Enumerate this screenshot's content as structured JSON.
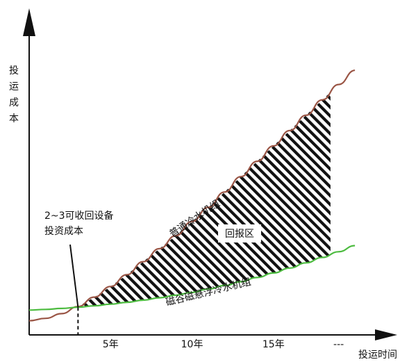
{
  "chart_data": {
    "type": "line",
    "ylabel": "投运成本",
    "xlabel": "投运时间",
    "x_ticks": [
      "5年",
      "10年",
      "15年",
      "---"
    ],
    "x_tick_values": [
      5,
      10,
      15,
      19
    ],
    "xlim": [
      0,
      22
    ],
    "series": [
      {
        "name": "普通冷水机组",
        "color": "#9a5545",
        "x": [
          0,
          1,
          2,
          3,
          4,
          5,
          6,
          7,
          8,
          9,
          10,
          11,
          12,
          13,
          14,
          15,
          16,
          17,
          18,
          19,
          20
        ],
        "y": [
          0.6,
          0.7,
          0.9,
          1.2,
          1.6,
          2.05,
          2.55,
          3.1,
          3.65,
          4.2,
          4.8,
          5.4,
          6.05,
          6.7,
          7.35,
          8.0,
          8.65,
          9.3,
          9.95,
          10.6,
          11.2
        ]
      },
      {
        "name": "磁谷磁悬浮冷水机组",
        "color": "#4cbb3f",
        "x": [
          0,
          1,
          2,
          3,
          4,
          5,
          6,
          7,
          8,
          9,
          10,
          11,
          12,
          13,
          14,
          15,
          16,
          17,
          18,
          19,
          20
        ],
        "y": [
          1.05,
          1.08,
          1.12,
          1.17,
          1.23,
          1.3,
          1.38,
          1.47,
          1.57,
          1.68,
          1.8,
          1.94,
          2.09,
          2.25,
          2.43,
          2.62,
          2.83,
          3.05,
          3.28,
          3.52,
          3.78
        ]
      }
    ],
    "shaded_region": {
      "label": "回报区",
      "x_start": 3,
      "x_end": 18.5
    },
    "annotation": {
      "text_line1": "2~3可收回设备",
      "text_line2": "投资成本",
      "x": 3
    }
  }
}
